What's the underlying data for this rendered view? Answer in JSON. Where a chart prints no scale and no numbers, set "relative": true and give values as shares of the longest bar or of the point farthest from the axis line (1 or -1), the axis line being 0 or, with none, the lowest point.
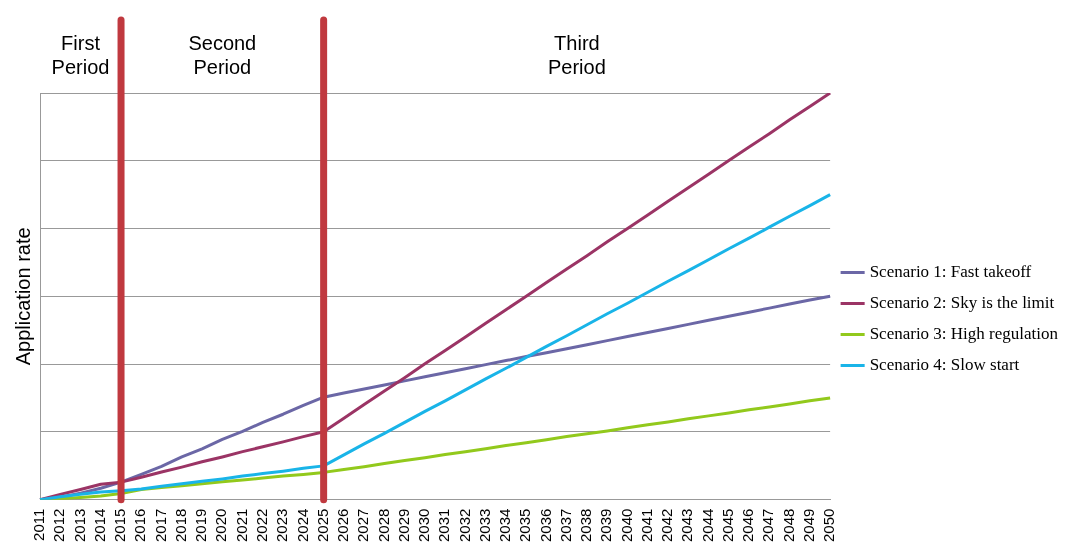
{
  "chart_data": {
    "type": "line",
    "ylabel": "Application rate",
    "relative": true,
    "grid": "y",
    "legend": "right",
    "marker": "none",
    "line_style": "solid",
    "categories": [
      "2011",
      "2012",
      "2013",
      "2014",
      "2015",
      "2016",
      "2017",
      "2018",
      "2019",
      "2020",
      "2021",
      "2022",
      "2023",
      "2024",
      "2025",
      "2026",
      "2027",
      "2028",
      "2029",
      "2030",
      "2031",
      "2032",
      "2033",
      "2034",
      "2035",
      "2036",
      "2037",
      "2038",
      "2039",
      "2040",
      "2041",
      "2042",
      "2043",
      "2044",
      "2045",
      "2046",
      "2047",
      "2048",
      "2049",
      "2050"
    ],
    "series": [
      {
        "name": "Scenario 1: Fast takeoff",
        "color": "#6b67a6",
        "values": [
          0,
          0.006,
          0.016,
          0.028,
          0.043,
          0.062,
          0.082,
          0.105,
          0.125,
          0.148,
          0.168,
          0.19,
          0.21,
          0.232,
          0.252,
          0.262,
          0.272,
          0.282,
          0.292,
          0.302,
          0.312,
          0.322,
          0.332,
          0.342,
          0.352,
          0.361,
          0.371,
          0.381,
          0.391,
          0.401,
          0.411,
          0.421,
          0.431,
          0.441,
          0.451,
          0.461,
          0.471,
          0.481,
          0.491,
          0.5
        ]
      },
      {
        "name": "Scenario 2: Sky is the limit",
        "color": "#9b3465",
        "values": [
          0,
          0.013,
          0.025,
          0.038,
          0.043,
          0.055,
          0.068,
          0.08,
          0.093,
          0.105,
          0.118,
          0.13,
          0.142,
          0.155,
          0.167,
          0.2,
          0.234,
          0.267,
          0.3,
          0.334,
          0.367,
          0.4,
          0.434,
          0.467,
          0.5,
          0.534,
          0.567,
          0.6,
          0.634,
          0.667,
          0.7,
          0.734,
          0.767,
          0.8,
          0.834,
          0.867,
          0.9,
          0.934,
          0.967,
          1
        ]
      },
      {
        "name": "Scenario 3: High regulation",
        "color": "#92c91c",
        "values": [
          0,
          0.002,
          0.005,
          0.009,
          0.015,
          0.025,
          0.03,
          0.034,
          0.039,
          0.044,
          0.048,
          0.053,
          0.058,
          0.062,
          0.067,
          0.074,
          0.081,
          0.089,
          0.096,
          0.103,
          0.111,
          0.118,
          0.125,
          0.133,
          0.14,
          0.147,
          0.155,
          0.162,
          0.169,
          0.177,
          0.184,
          0.191,
          0.199,
          0.206,
          0.213,
          0.221,
          0.228,
          0.235,
          0.243,
          0.25
        ]
      },
      {
        "name": "Scenario 4: Slow start",
        "color": "#19b4e8",
        "values": [
          0,
          0.007,
          0.013,
          0.019,
          0.022,
          0.026,
          0.033,
          0.039,
          0.045,
          0.051,
          0.058,
          0.064,
          0.07,
          0.077,
          0.083,
          0.11,
          0.137,
          0.163,
          0.19,
          0.217,
          0.243,
          0.27,
          0.297,
          0.323,
          0.35,
          0.377,
          0.403,
          0.43,
          0.457,
          0.483,
          0.51,
          0.537,
          0.563,
          0.59,
          0.617,
          0.643,
          0.67,
          0.697,
          0.723,
          0.75
        ]
      }
    ],
    "ref_lines": [
      {
        "axis": "x",
        "value": "2015",
        "color": "#c0393f"
      },
      {
        "axis": "x",
        "value": "2025",
        "color": "#c0393f"
      }
    ],
    "annotations": [
      "First Period",
      "Second Period",
      "Third Period"
    ]
  }
}
